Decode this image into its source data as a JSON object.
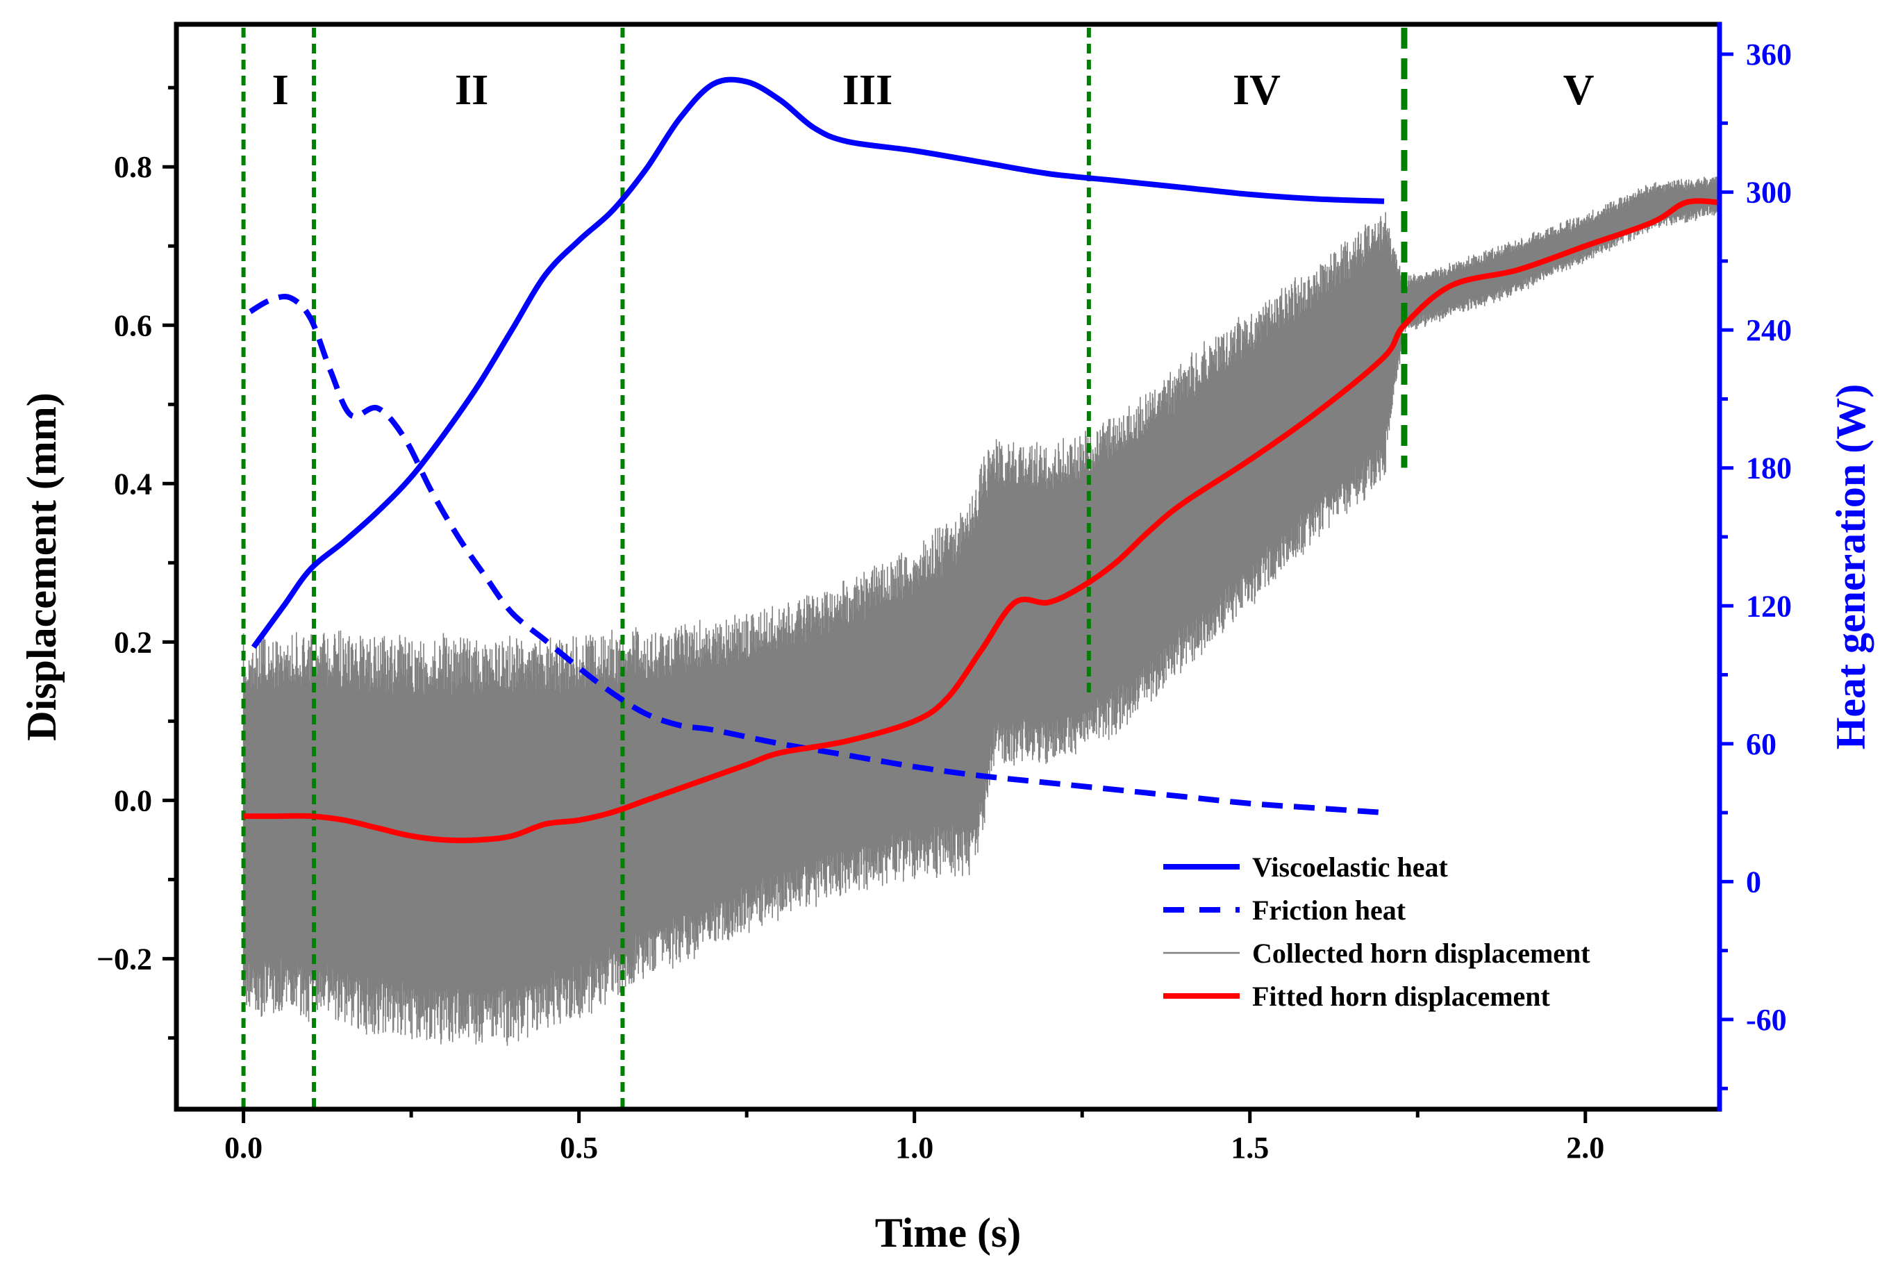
{
  "chart_data": {
    "type": "line",
    "x_axis": {
      "label": "Time (s)",
      "range": [
        -0.1,
        2.2
      ],
      "ticks": [
        0.0,
        0.5,
        1.0,
        1.5,
        2.0
      ],
      "tick_labels": [
        "0.0",
        "0.5",
        "1.0",
        "1.5",
        "2.0"
      ]
    },
    "y_axis_left": {
      "label": "Displacement (mm)",
      "range": [
        -0.39,
        0.98
      ],
      "ticks": [
        -0.2,
        0.0,
        0.2,
        0.4,
        0.6,
        0.8
      ],
      "tick_labels": [
        "−0.2",
        "0.0",
        "0.2",
        "0.4",
        "0.6",
        "0.8"
      ]
    },
    "y_axis_right": {
      "label": "Heat generation (W)",
      "color": "#0000ff",
      "range": [
        -99,
        373
      ],
      "ticks": [
        -60,
        0,
        60,
        120,
        180,
        240,
        300,
        360
      ],
      "tick_labels": [
        "-60",
        "0",
        "60",
        "120",
        "180",
        "240",
        "300",
        "360"
      ]
    },
    "phases": [
      {
        "label": "I",
        "x": 0.055
      },
      {
        "label": "II",
        "x": 0.34
      },
      {
        "label": "III",
        "x": 0.93
      },
      {
        "label": "IV",
        "x": 1.51
      },
      {
        "label": "V",
        "x": 1.99
      }
    ],
    "phase_boundaries": [
      0.0,
      0.105,
      0.565,
      1.26,
      1.73
    ],
    "series": [
      {
        "name": "Viscoelastic heat",
        "axis": "right",
        "color": "#0000ff",
        "style": "solid",
        "x": [
          0.015,
          0.06,
          0.1,
          0.15,
          0.2,
          0.25,
          0.3,
          0.35,
          0.4,
          0.45,
          0.5,
          0.55,
          0.6,
          0.65,
          0.7,
          0.75,
          0.8,
          0.85,
          0.9,
          1.0,
          1.1,
          1.2,
          1.3,
          1.4,
          1.5,
          1.6,
          1.7
        ],
        "y": [
          102,
          120,
          136,
          148,
          161,
          176,
          195,
          216,
          240,
          264,
          279,
          292,
          310,
          332,
          347,
          348,
          340,
          328,
          322,
          318,
          313,
          308,
          305,
          302,
          299,
          297,
          296
        ]
      },
      {
        "name": "Friction heat",
        "axis": "right",
        "color": "#0000ff",
        "style": "dashed",
        "x": [
          0.01,
          0.04,
          0.07,
          0.1,
          0.13,
          0.16,
          0.2,
          0.24,
          0.28,
          0.32,
          0.36,
          0.4,
          0.45,
          0.5,
          0.55,
          0.6,
          0.65,
          0.7,
          0.8,
          0.9,
          1.0,
          1.1,
          1.2,
          1.3,
          1.4,
          1.5,
          1.6,
          1.7
        ],
        "y": [
          248,
          253,
          254,
          245,
          222,
          203,
          206,
          193,
          170,
          150,
          133,
          117,
          105,
          93,
          82,
          73,
          68,
          66,
          60,
          55,
          50,
          46,
          43,
          40,
          37,
          34,
          32,
          30
        ]
      },
      {
        "name": "Collected horn displacement",
        "axis": "left",
        "color": "#808080",
        "style": "band",
        "x": [
          0.0,
          0.1,
          0.2,
          0.3,
          0.4,
          0.5,
          0.6,
          0.7,
          0.8,
          0.9,
          1.0,
          1.08,
          1.1,
          1.12,
          1.2,
          1.3,
          1.4,
          1.5,
          1.6,
          1.7,
          1.73,
          1.8,
          1.9,
          2.0,
          2.1,
          2.2
        ],
        "upper": [
          0.2,
          0.21,
          0.2,
          0.2,
          0.2,
          0.2,
          0.21,
          0.22,
          0.24,
          0.27,
          0.31,
          0.37,
          0.43,
          0.45,
          0.44,
          0.48,
          0.55,
          0.61,
          0.67,
          0.74,
          0.65,
          0.67,
          0.7,
          0.73,
          0.77,
          0.78
        ],
        "lower": [
          -0.26,
          -0.27,
          -0.29,
          -0.3,
          -0.3,
          -0.27,
          -0.22,
          -0.18,
          -0.14,
          -0.11,
          -0.09,
          -0.09,
          -0.05,
          0.05,
          0.05,
          0.09,
          0.17,
          0.25,
          0.34,
          0.41,
          0.6,
          0.62,
          0.65,
          0.69,
          0.73,
          0.75
        ]
      },
      {
        "name": "Fitted horn displacement",
        "axis": "left",
        "color": "#ff0000",
        "style": "solid",
        "x": [
          0.0,
          0.05,
          0.1,
          0.15,
          0.2,
          0.25,
          0.3,
          0.35,
          0.4,
          0.45,
          0.5,
          0.55,
          0.6,
          0.65,
          0.7,
          0.75,
          0.8,
          0.9,
          1.0,
          1.05,
          1.1,
          1.15,
          1.2,
          1.25,
          1.3,
          1.35,
          1.4,
          1.5,
          1.6,
          1.7,
          1.73,
          1.8,
          1.9,
          2.0,
          2.1,
          2.15,
          2.2
        ],
        "y": [
          -0.02,
          -0.02,
          -0.02,
          -0.025,
          -0.035,
          -0.045,
          -0.05,
          -0.05,
          -0.045,
          -0.03,
          -0.025,
          -0.015,
          0.0,
          0.015,
          0.03,
          0.045,
          0.06,
          0.075,
          0.1,
          0.13,
          0.19,
          0.25,
          0.25,
          0.27,
          0.3,
          0.34,
          0.375,
          0.43,
          0.49,
          0.56,
          0.6,
          0.65,
          0.67,
          0.7,
          0.73,
          0.755,
          0.755
        ]
      }
    ],
    "legend": {
      "position": "bottom-right",
      "entries": [
        {
          "label": "Viscoelastic heat",
          "color": "#0000ff",
          "style": "solid"
        },
        {
          "label": "Friction heat",
          "color": "#0000ff",
          "style": "dashed"
        },
        {
          "label": "Collected horn displacement",
          "color": "#808080",
          "style": "thin"
        },
        {
          "label": "Fitted horn displacement",
          "color": "#ff0000",
          "style": "solid"
        }
      ]
    },
    "grid": false
  }
}
